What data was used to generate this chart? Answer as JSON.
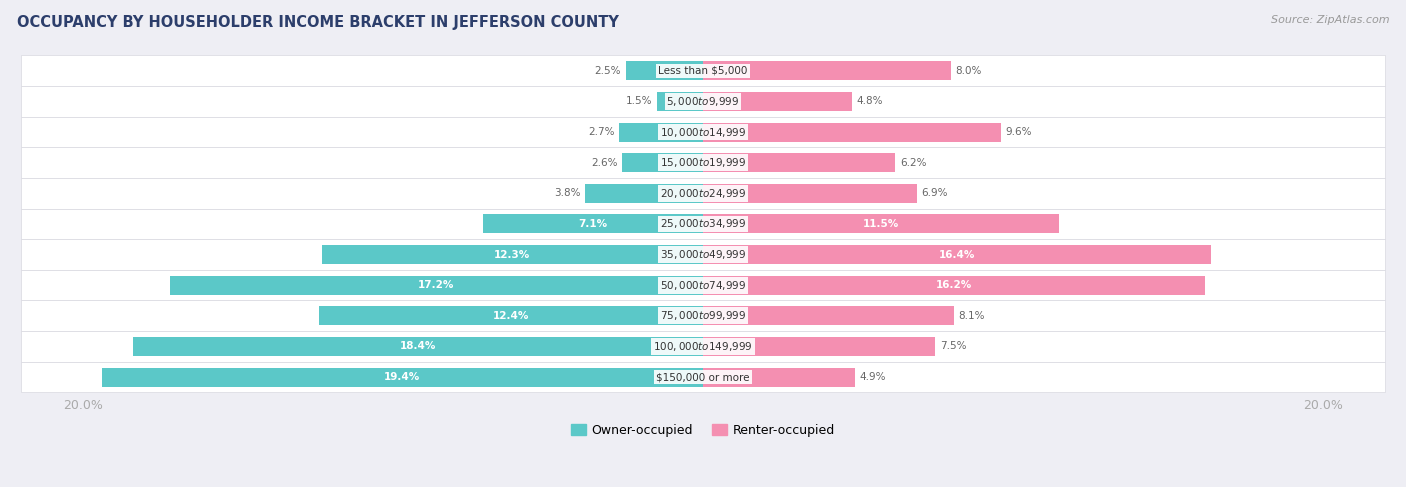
{
  "title": "OCCUPANCY BY HOUSEHOLDER INCOME BRACKET IN JEFFERSON COUNTY",
  "source": "Source: ZipAtlas.com",
  "categories": [
    "Less than $5,000",
    "$5,000 to $9,999",
    "$10,000 to $14,999",
    "$15,000 to $19,999",
    "$20,000 to $24,999",
    "$25,000 to $34,999",
    "$35,000 to $49,999",
    "$50,000 to $74,999",
    "$75,000 to $99,999",
    "$100,000 to $149,999",
    "$150,000 or more"
  ],
  "owner_values": [
    2.5,
    1.5,
    2.7,
    2.6,
    3.8,
    7.1,
    12.3,
    17.2,
    12.4,
    18.4,
    19.4
  ],
  "renter_values": [
    8.0,
    4.8,
    9.6,
    6.2,
    6.9,
    11.5,
    16.4,
    16.2,
    8.1,
    7.5,
    4.9
  ],
  "owner_color": "#5bc8c8",
  "renter_color": "#f48fb1",
  "bg_color": "#eeeef4",
  "bar_bg_color": "#ffffff",
  "title_color": "#2c3e6b",
  "source_color": "#999999",
  "label_color_dark": "#666666",
  "label_color_light": "#ffffff",
  "axis_label_color": "#aaaaaa",
  "max_value": 20.0,
  "legend_owner": "Owner-occupied",
  "legend_renter": "Renter-occupied",
  "owner_threshold": 6.0,
  "renter_threshold": 10.0
}
